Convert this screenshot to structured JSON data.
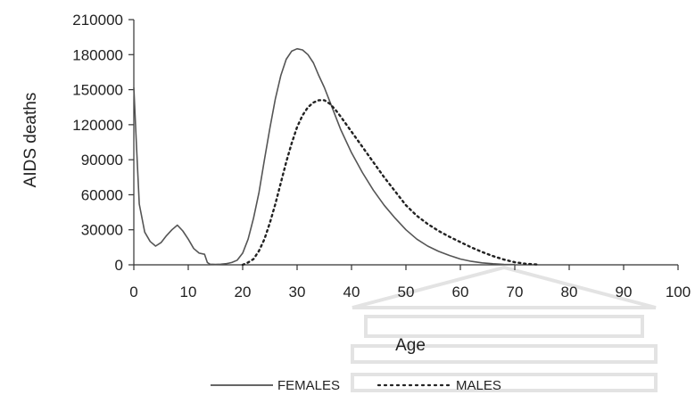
{
  "chart_data": {
    "type": "line",
    "title": "",
    "xlabel": "Age",
    "ylabel": "AIDS deaths",
    "xlim": [
      0,
      100
    ],
    "ylim": [
      0,
      210000
    ],
    "x_ticks": [
      0,
      10,
      20,
      30,
      40,
      50,
      60,
      70,
      80,
      90,
      100
    ],
    "y_ticks": [
      0,
      30000,
      60000,
      90000,
      120000,
      150000,
      180000,
      210000
    ],
    "x_tick_labels": [
      "0",
      "10",
      "20",
      "30",
      "40",
      "50",
      "60",
      "70",
      "80",
      "90",
      "100"
    ],
    "y_tick_labels": [
      "0",
      "30000",
      "60000",
      "90000",
      "120000",
      "150000",
      "180000",
      "210000"
    ],
    "grid": false,
    "legend_position": "bottom",
    "series": [
      {
        "name": "FEMALES",
        "style": "solid",
        "color": "#555555",
        "x": [
          0,
          0.5,
          1,
          2,
          3,
          4,
          5,
          6,
          7,
          8,
          9,
          10,
          11,
          12,
          13,
          13.5,
          14,
          15,
          16,
          17,
          18,
          19,
          20,
          21,
          22,
          23,
          24,
          25,
          26,
          27,
          28,
          29,
          30,
          31,
          32,
          33,
          34,
          35,
          36,
          37,
          38,
          40,
          42,
          44,
          46,
          48,
          50,
          52,
          54,
          56,
          58,
          60,
          62,
          64,
          66,
          68,
          70
        ],
        "y": [
          152000,
          100000,
          52000,
          28000,
          20000,
          16000,
          19000,
          25000,
          30000,
          34000,
          29000,
          22000,
          14000,
          10000,
          9000,
          2000,
          500,
          300,
          500,
          1000,
          2000,
          4000,
          10000,
          22000,
          40000,
          62000,
          90000,
          117000,
          142000,
          162000,
          176000,
          183000,
          185000,
          184000,
          180000,
          173000,
          162000,
          152000,
          140000,
          128000,
          116000,
          96000,
          79000,
          64000,
          51000,
          40000,
          30000,
          22000,
          16000,
          11500,
          8000,
          5000,
          3000,
          1700,
          900,
          400,
          200
        ]
      },
      {
        "name": "MALES",
        "style": "dotted",
        "color": "#222222",
        "x": [
          20,
          21,
          22,
          23,
          24,
          25,
          26,
          27,
          28,
          29,
          30,
          31,
          32,
          33,
          34,
          35,
          36,
          37,
          38,
          40,
          42,
          44,
          46,
          48,
          50,
          52,
          54,
          56,
          58,
          60,
          62,
          64,
          66,
          68,
          70,
          72,
          74
        ],
        "y": [
          0,
          2000,
          5000,
          12000,
          22000,
          36000,
          52000,
          70000,
          88000,
          104000,
          118000,
          128000,
          135000,
          139000,
          141000,
          141000,
          138000,
          133000,
          127000,
          114000,
          101000,
          88000,
          75000,
          63000,
          51000,
          42000,
          35000,
          29000,
          24000,
          19500,
          15000,
          11000,
          7500,
          4500,
          2200,
          900,
          300
        ]
      }
    ]
  }
}
